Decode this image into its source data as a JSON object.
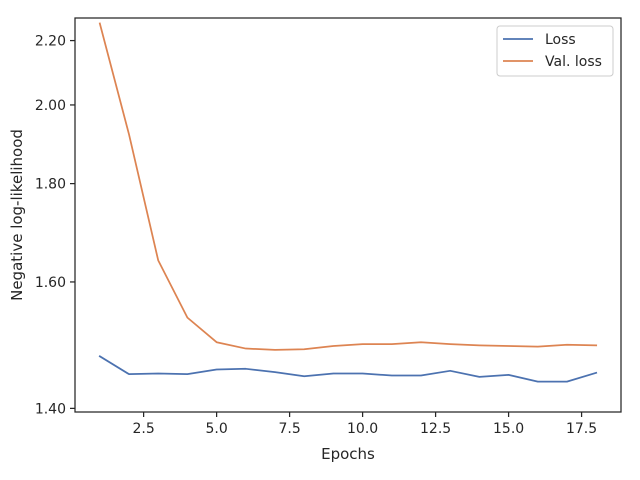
{
  "chart_data": {
    "type": "line",
    "title": "",
    "xlabel": "Epochs",
    "ylabel": "Negative log-likelihood",
    "xlim": [
      0.15,
      18.85
    ],
    "ylim": [
      1.395,
      2.28
    ],
    "y_scale": "reciprocal",
    "xticks": [
      2.5,
      5.0,
      7.5,
      10.0,
      12.5,
      15.0,
      17.5
    ],
    "xtick_labels": [
      "2.5",
      "5.0",
      "7.5",
      "10.0",
      "12.5",
      "15.0",
      "17.5"
    ],
    "yticks": [
      1.4,
      1.6,
      1.8,
      2.0,
      2.2
    ],
    "ytick_labels": [
      "1.40",
      "1.60",
      "1.80",
      "2.00",
      "2.20"
    ],
    "grid": false,
    "legend": {
      "position": "upper-right"
    },
    "x": [
      1,
      2,
      3,
      4,
      5,
      6,
      7,
      8,
      9,
      10,
      11,
      12,
      13,
      14,
      15,
      16,
      17,
      18
    ],
    "series": [
      {
        "name": "Loss",
        "color": "#4c72b0",
        "values": [
          1.476,
          1.449,
          1.45,
          1.449,
          1.456,
          1.457,
          1.452,
          1.446,
          1.45,
          1.45,
          1.447,
          1.447,
          1.454,
          1.445,
          1.448,
          1.438,
          1.438,
          1.451
        ]
      },
      {
        "name": "Val. loss",
        "color": "#dd8452",
        "values": [
          2.26,
          1.92,
          1.64,
          1.538,
          1.498,
          1.488,
          1.486,
          1.487,
          1.492,
          1.495,
          1.495,
          1.498,
          1.495,
          1.493,
          1.492,
          1.491,
          1.494,
          1.493
        ]
      }
    ]
  }
}
